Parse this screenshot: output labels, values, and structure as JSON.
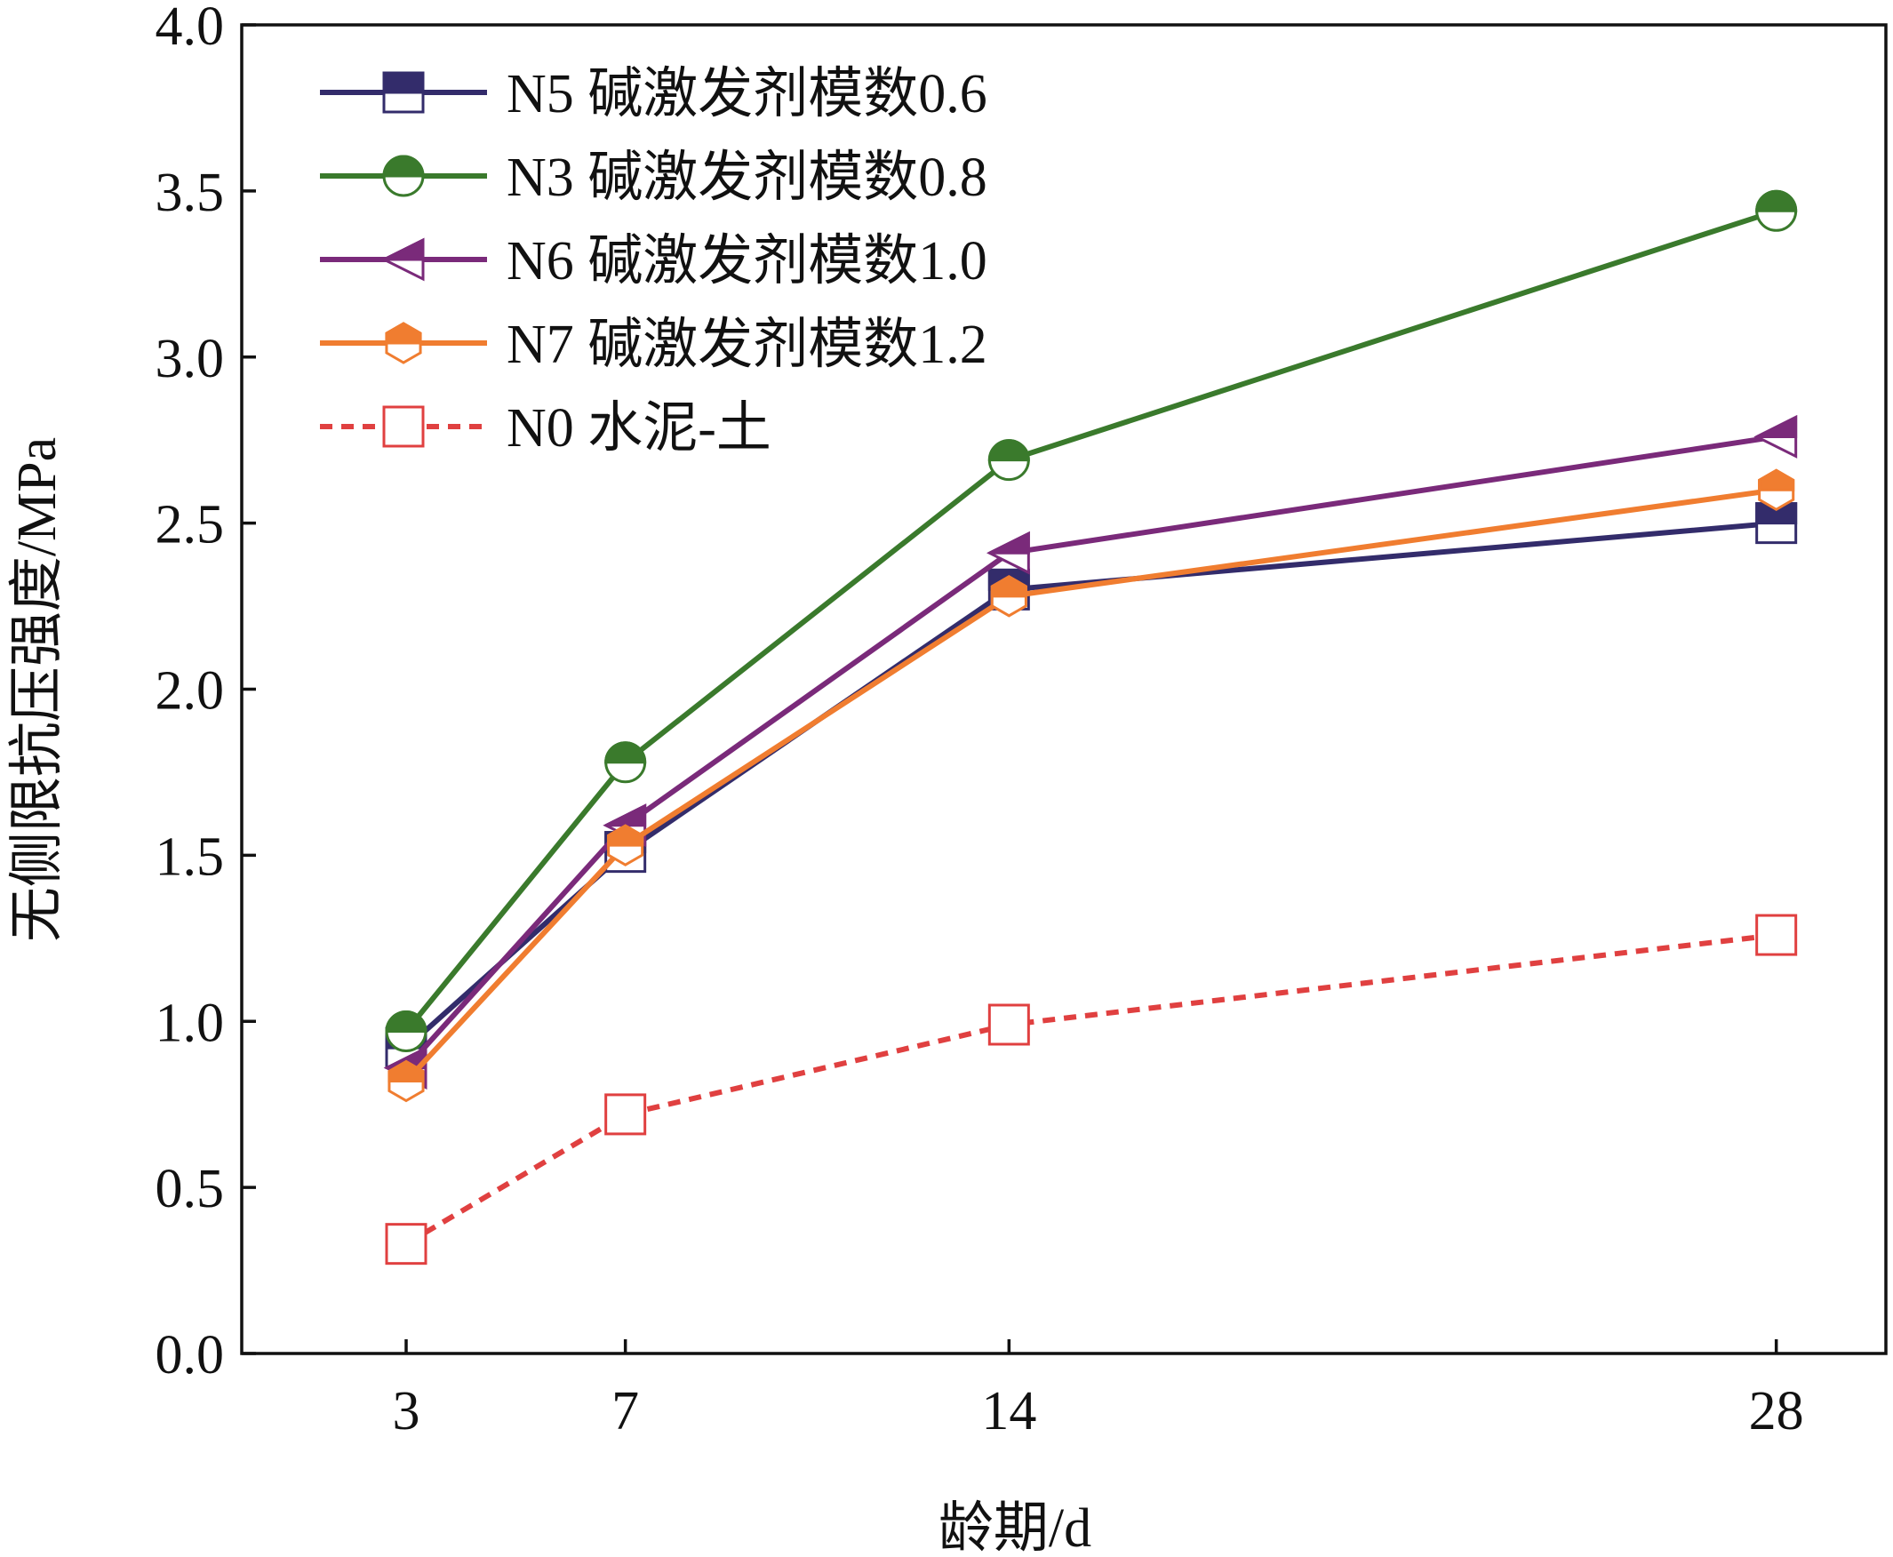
{
  "chart_data": {
    "type": "line",
    "xlabel": "龄期/d",
    "ylabel": "无侧限抗压强度/MPa",
    "x": [
      3,
      7,
      14,
      28
    ],
    "x_ticks": [
      "3",
      "7",
      "14",
      "28"
    ],
    "xlim": [
      0,
      30
    ],
    "ylim": [
      0,
      4.0
    ],
    "y_ticks": [
      "0.0",
      "0.5",
      "1.0",
      "1.5",
      "2.0",
      "2.5",
      "3.0",
      "3.5",
      "4.0"
    ],
    "grid": false,
    "legend_position": "top-left",
    "series": [
      {
        "name": "N5 碱激发剂模数0.6",
        "values": [
          0.92,
          1.51,
          2.3,
          2.5
        ],
        "color": "#332c6b",
        "marker": "square-half",
        "line": "solid"
      },
      {
        "name": "N3 碱激发剂模数0.8",
        "values": [
          0.97,
          1.78,
          2.69,
          3.44
        ],
        "color": "#3a7a2c",
        "marker": "circle-half",
        "line": "solid"
      },
      {
        "name": "N6 碱激发剂模数1.0",
        "values": [
          0.86,
          1.59,
          2.41,
          2.76
        ],
        "color": "#7a2a7a",
        "marker": "triangle-left-half",
        "line": "solid"
      },
      {
        "name": "N7 碱激发剂模数1.2",
        "values": [
          0.82,
          1.53,
          2.28,
          2.6
        ],
        "color": "#f07d30",
        "marker": "hexagon-half",
        "line": "solid"
      },
      {
        "name": "N0 水泥-土",
        "values": [
          0.33,
          0.72,
          0.99,
          1.26
        ],
        "color": "#e04040",
        "marker": "square-open",
        "line": "dashed"
      }
    ]
  }
}
